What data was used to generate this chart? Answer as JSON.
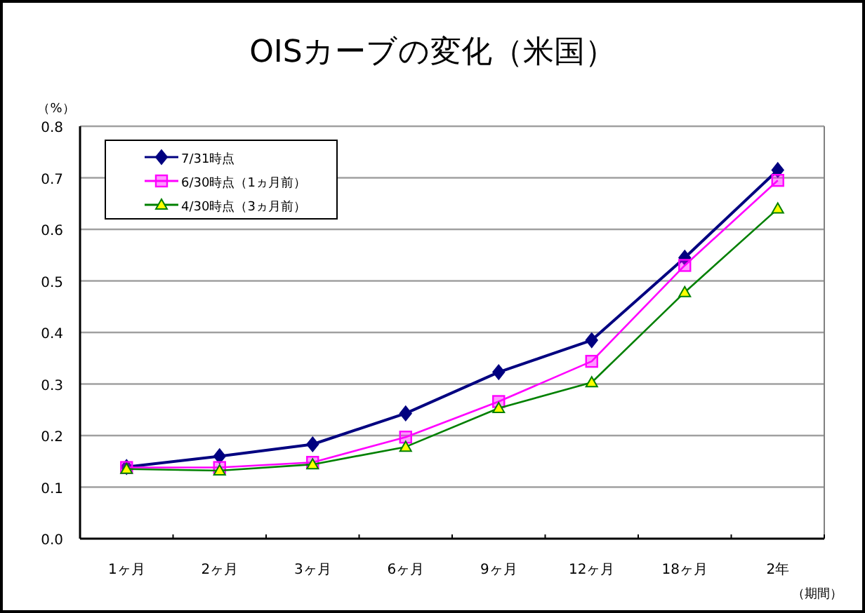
{
  "chart_data": {
    "type": "line",
    "title": "OISカーブの変化（米国）",
    "ylabel": "（%）",
    "xlabel": "（期間）",
    "categories": [
      "1ヶ月",
      "2ヶ月",
      "3ヶ月",
      "6ヶ月",
      "9ヶ月",
      "12ヶ月",
      "18ヶ月",
      "2年"
    ],
    "series": [
      {
        "name": "7/31時点",
        "color": "#000080",
        "marker": "diamond",
        "values": [
          0.139,
          0.16,
          0.183,
          0.243,
          0.323,
          0.385,
          0.545,
          0.715
        ]
      },
      {
        "name": "6/30時点（1ヵ月前）",
        "color": "#ff00ff",
        "marker": "square",
        "values": [
          0.138,
          0.138,
          0.148,
          0.197,
          0.266,
          0.344,
          0.53,
          0.695
        ]
      },
      {
        "name": "4/30時点（3ヵ月前）",
        "color": "#008000",
        "marker": "triangle",
        "values": [
          0.135,
          0.132,
          0.144,
          0.178,
          0.253,
          0.303,
          0.478,
          0.64
        ]
      }
    ],
    "ylim": [
      0,
      0.8
    ],
    "yticks": [
      {
        "value": 0,
        "label": "0.0"
      },
      {
        "value": 0.1,
        "label": "0.1"
      },
      {
        "value": 0.2,
        "label": "0.2"
      },
      {
        "value": 0.3,
        "label": "0.3"
      },
      {
        "value": 0.4,
        "label": "0.4"
      },
      {
        "value": 0.5,
        "label": "0.5"
      },
      {
        "value": 0.6,
        "label": "0.6"
      },
      {
        "value": 0.7,
        "label": "0.7"
      },
      {
        "value": 0.8,
        "label": "0.8"
      }
    ],
    "grid": "y",
    "legend": "top left"
  }
}
